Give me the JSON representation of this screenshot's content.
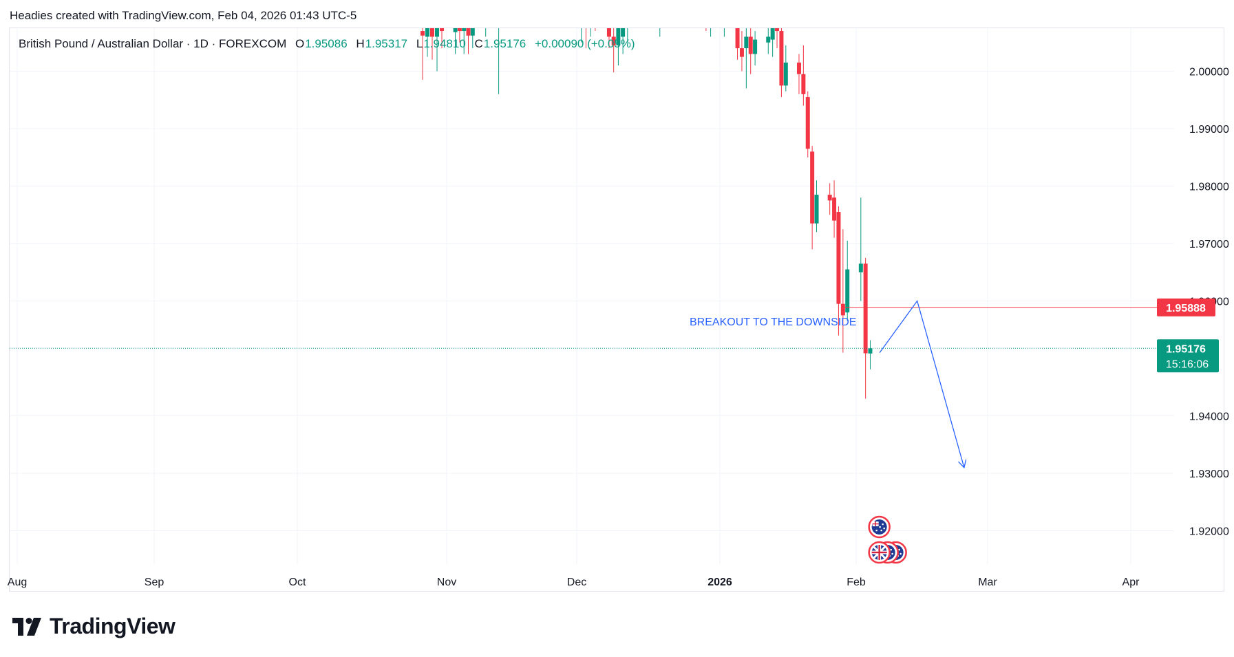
{
  "header": {
    "caption": "Headies created with TradingView.com, Feb 04, 2026 01:43 UTC-5"
  },
  "legend": {
    "symbol": "British Pound / Australian Dollar · 1D · FOREXCOM",
    "open_label": "O",
    "open": "1.95086",
    "high_label": "H",
    "high": "1.95317",
    "low_label": "L",
    "low": "1.94810",
    "close_label": "C",
    "close": "1.95176",
    "change": "+0.00090 (+0.05%)"
  },
  "logo": {
    "text": "TradingView",
    "icon": "tradingview-logo-icon"
  },
  "colors": {
    "up": "#089981",
    "down": "#f23645",
    "grid": "#f0f3fa",
    "annotation": "#2962ff",
    "resistance": "#f23645",
    "price_tag": "#089981"
  },
  "chart_data": {
    "type": "candlestick",
    "x_ticks": [
      "Aug",
      "Sep",
      "Oct",
      "Nov",
      "Dec",
      "2026",
      "Feb",
      "Mar",
      "Apr"
    ],
    "y_ticks": [
      "1.92000",
      "1.93000",
      "1.94000",
      "1.96000",
      "1.97000",
      "1.98000",
      "1.99000",
      "2.00000"
    ],
    "ylim": [
      1.9145,
      2.0075
    ],
    "grid": true,
    "candles": [
      {
        "date": "2025-10-27",
        "o": 2.007,
        "h": 2.0115,
        "l": 1.9985,
        "c": 2.0062
      },
      {
        "date": "2025-10-28",
        "o": 2.006,
        "h": 2.01,
        "l": 2.0025,
        "c": 2.0082
      },
      {
        "date": "2025-10-29",
        "o": 2.008,
        "h": 2.012,
        "l": 2.002,
        "c": 2.006
      },
      {
        "date": "2025-10-30",
        "o": 2.006,
        "h": 2.012,
        "l": 2.0,
        "c": 2.0095
      },
      {
        "date": "2025-10-31",
        "o": 2.009,
        "h": 2.014,
        "l": 2.004,
        "c": 2.007
      },
      {
        "date": "2025-11-03",
        "o": 2.0068,
        "h": 2.011,
        "l": 2.003,
        "c": 2.009
      },
      {
        "date": "2025-11-04",
        "o": 2.009,
        "h": 2.013,
        "l": 2.005,
        "c": 2.007
      },
      {
        "date": "2025-11-05",
        "o": 2.007,
        "h": 2.01,
        "l": 2.003,
        "c": 2.0088
      },
      {
        "date": "2025-11-06",
        "o": 2.0088,
        "h": 2.012,
        "l": 2.003,
        "c": 2.0062
      },
      {
        "date": "2025-11-07",
        "o": 2.0062,
        "h": 2.011,
        "l": 2.004,
        "c": 2.009
      },
      {
        "date": "2025-11-10",
        "o": 2.011,
        "h": 2.016,
        "l": 2.006,
        "c": 2.014
      },
      {
        "date": "2025-11-11",
        "o": 2.013,
        "h": 2.017,
        "l": 2.008,
        "c": 2.015
      },
      {
        "date": "2025-11-12",
        "o": 2.015,
        "h": 2.02,
        "l": 2.009,
        "c": 2.012
      },
      {
        "date": "2025-11-13",
        "o": 2.012,
        "h": 2.015,
        "l": 1.996,
        "c": 2.014
      },
      {
        "date": "2025-11-14",
        "o": 2.014,
        "h": 2.018,
        "l": 2.008,
        "c": 2.011
      },
      {
        "date": "2025-12-02",
        "o": 2.0075,
        "h": 2.012,
        "l": 2.005,
        "c": 2.009
      },
      {
        "date": "2025-12-03",
        "o": 2.009,
        "h": 2.013,
        "l": 2.004,
        "c": 2.008
      },
      {
        "date": "2025-12-04",
        "o": 2.0082,
        "h": 2.015,
        "l": 2.006,
        "c": 2.012
      },
      {
        "date": "2025-12-05",
        "o": 2.012,
        "h": 2.018,
        "l": 2.007,
        "c": 2.01
      },
      {
        "date": "2025-12-08",
        "o": 2.01,
        "h": 2.014,
        "l": 2.004,
        "c": 2.006
      },
      {
        "date": "2025-12-09",
        "o": 2.006,
        "h": 2.009,
        "l": 1.9998,
        "c": 2.0045
      },
      {
        "date": "2025-12-10",
        "o": 2.0045,
        "h": 2.011,
        "l": 2.001,
        "c": 2.008
      },
      {
        "date": "2025-12-11",
        "o": 2.006,
        "h": 2.01,
        "l": 2.003,
        "c": 2.009
      },
      {
        "date": "2025-12-12",
        "o": 2.009,
        "h": 2.013,
        "l": 2.005,
        "c": 2.011
      },
      {
        "date": "2025-12-15",
        "o": 2.012,
        "h": 2.016,
        "l": 2.009,
        "c": 2.014
      },
      {
        "date": "2025-12-19",
        "o": 2.012,
        "h": 2.015,
        "l": 2.006,
        "c": 2.013
      },
      {
        "date": "2025-12-29",
        "o": 2.012,
        "h": 2.015,
        "l": 2.007,
        "c": 2.011
      },
      {
        "date": "2025-12-30",
        "o": 2.011,
        "h": 2.014,
        "l": 2.006,
        "c": 2.012
      },
      {
        "date": "2026-01-02",
        "o": 2.01,
        "h": 2.014,
        "l": 2.006,
        "c": 2.012
      },
      {
        "date": "2026-01-05",
        "o": 2.008,
        "h": 2.011,
        "l": 2.002,
        "c": 2.004
      },
      {
        "date": "2026-01-06",
        "o": 2.004,
        "h": 2.007,
        "l": 2.0,
        "c": 2.0025
      },
      {
        "date": "2026-01-07",
        "o": 2.004,
        "h": 2.008,
        "l": 1.997,
        "c": 2.006
      },
      {
        "date": "2026-01-08",
        "o": 2.006,
        "h": 2.0085,
        "l": 1.9995,
        "c": 2.003
      },
      {
        "date": "2026-01-09",
        "o": 2.003,
        "h": 2.007,
        "l": 2.001,
        "c": 2.0055
      },
      {
        "date": "2026-01-12",
        "o": 2.005,
        "h": 2.008,
        "l": 2.003,
        "c": 2.006
      },
      {
        "date": "2026-01-13",
        "o": 2.0055,
        "h": 2.0085,
        "l": 2.0025,
        "c": 2.0075
      },
      {
        "date": "2026-01-14",
        "o": 2.008,
        "h": 2.0095,
        "l": 2.004,
        "c": 2.007
      },
      {
        "date": "2026-01-15",
        "o": 2.007,
        "h": 2.008,
        "l": 1.9955,
        "c": 1.9975
      },
      {
        "date": "2026-01-16",
        "o": 1.9975,
        "h": 2.0045,
        "l": 1.9965,
        "c": 2.0015
      },
      {
        "date": "2026-01-19",
        "o": 2.0015,
        "h": 2.003,
        "l": 1.996,
        "c": 1.9995
      },
      {
        "date": "2026-01-20",
        "o": 1.9995,
        "h": 2.0045,
        "l": 1.994,
        "c": 1.996
      },
      {
        "date": "2026-01-21",
        "o": 1.9955,
        "h": 1.9965,
        "l": 1.985,
        "c": 1.9865
      },
      {
        "date": "2026-01-22",
        "o": 1.986,
        "h": 1.987,
        "l": 1.969,
        "c": 1.9735
      },
      {
        "date": "2026-01-23",
        "o": 1.9735,
        "h": 1.981,
        "l": 1.972,
        "c": 1.9785
      },
      {
        "date": "2026-01-26",
        "o": 1.9785,
        "h": 1.9805,
        "l": 1.975,
        "c": 1.9775
      },
      {
        "date": "2026-01-27",
        "o": 1.978,
        "h": 1.981,
        "l": 1.971,
        "c": 1.974
      },
      {
        "date": "2026-01-28",
        "o": 1.9755,
        "h": 1.9765,
        "l": 1.954,
        "c": 1.9595
      },
      {
        "date": "2026-01-29",
        "o": 1.9595,
        "h": 1.9725,
        "l": 1.951,
        "c": 1.9575
      },
      {
        "date": "2026-01-30",
        "o": 1.958,
        "h": 1.9705,
        "l": 1.9565,
        "c": 1.9655
      },
      {
        "date": "2026-02-02",
        "o": 1.965,
        "h": 1.978,
        "l": 1.96,
        "c": 1.9665
      },
      {
        "date": "2026-02-03",
        "o": 1.9665,
        "h": 1.9675,
        "l": 1.943,
        "c": 1.9509
      },
      {
        "date": "2026-02-04",
        "o": 1.95086,
        "h": 1.95317,
        "l": 1.9481,
        "c": 1.95176
      }
    ],
    "resistance_level": {
      "value": 1.95888,
      "from_date": "2026-01-29",
      "label": "1.95888"
    },
    "last_price": {
      "value": 1.95176,
      "label": "1.95176",
      "countdown": "15:16:06"
    },
    "annotation": {
      "text": "BREAKOUT TO THE DOWNSIDE",
      "path": [
        {
          "date": "2026-02-06",
          "price": 1.951
        },
        {
          "date": "2026-02-14",
          "price": 1.96
        },
        {
          "date": "2026-02-24",
          "price": 1.931
        }
      ]
    },
    "events": [
      {
        "date": "2026-02-03",
        "icons": [
          "au-flag-icon"
        ]
      },
      {
        "date": "2026-02-03",
        "icons": [
          "gb-flag-icon",
          "au-flag-icon",
          "au-flag-icon"
        ]
      }
    ]
  }
}
